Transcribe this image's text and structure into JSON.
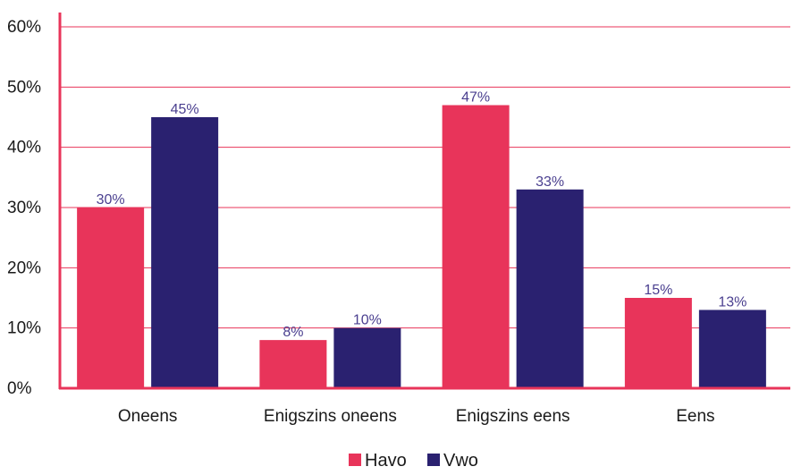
{
  "chart_data": {
    "type": "bar",
    "categories": [
      "Oneens",
      "Enigszins oneens",
      "Enigszins eens",
      "Eens"
    ],
    "series": [
      {
        "name": "Havo",
        "values": [
          30,
          8,
          47,
          15
        ],
        "labels": [
          "30%",
          "8%",
          "47%",
          "15%"
        ],
        "color": "#e8345a"
      },
      {
        "name": "Vwo",
        "values": [
          45,
          10,
          33,
          13
        ],
        "labels": [
          "45%",
          "10%",
          "33%",
          "13%"
        ],
        "color": "#2a2170"
      }
    ],
    "yticks": [
      "0%",
      "10%",
      "20%",
      "30%",
      "40%",
      "50%",
      "60%"
    ],
    "ylim": [
      0,
      60
    ],
    "grid": true,
    "grid_color": "#e8345a",
    "axis_color": "#e8345a",
    "legend_position": "bottom-center"
  }
}
